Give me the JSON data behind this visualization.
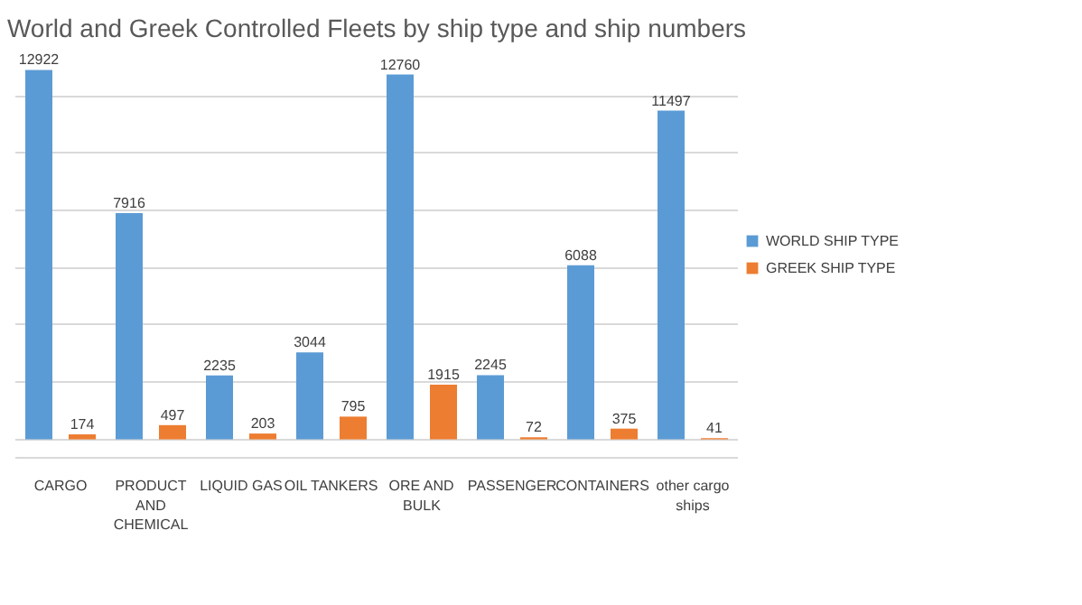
{
  "chart_data": {
    "type": "bar",
    "title": "World and Greek Controlled Fleets by ship type and ship numbers",
    "categories": [
      "CARGO",
      "PRODUCT\nAND\nCHEMICAL",
      "LIQUID GAS",
      "OIL TANKERS",
      "ORE AND\nBULK",
      "PASSENGER",
      "CONTAINERS",
      "other cargo\nships"
    ],
    "series": [
      {
        "name": "WORLD SHIP TYPE",
        "color": "#5b9bd5",
        "values": [
          12922,
          7916,
          2235,
          3044,
          12760,
          2245,
          6088,
          11497
        ]
      },
      {
        "name": "GREEK SHIP TYPE",
        "color": "#ed7d31",
        "values": [
          174,
          497,
          203,
          795,
          1915,
          72,
          375,
          41
        ]
      }
    ],
    "tick_labels": "x",
    "grid": "y",
    "legend": "right",
    "data_labels": true
  }
}
